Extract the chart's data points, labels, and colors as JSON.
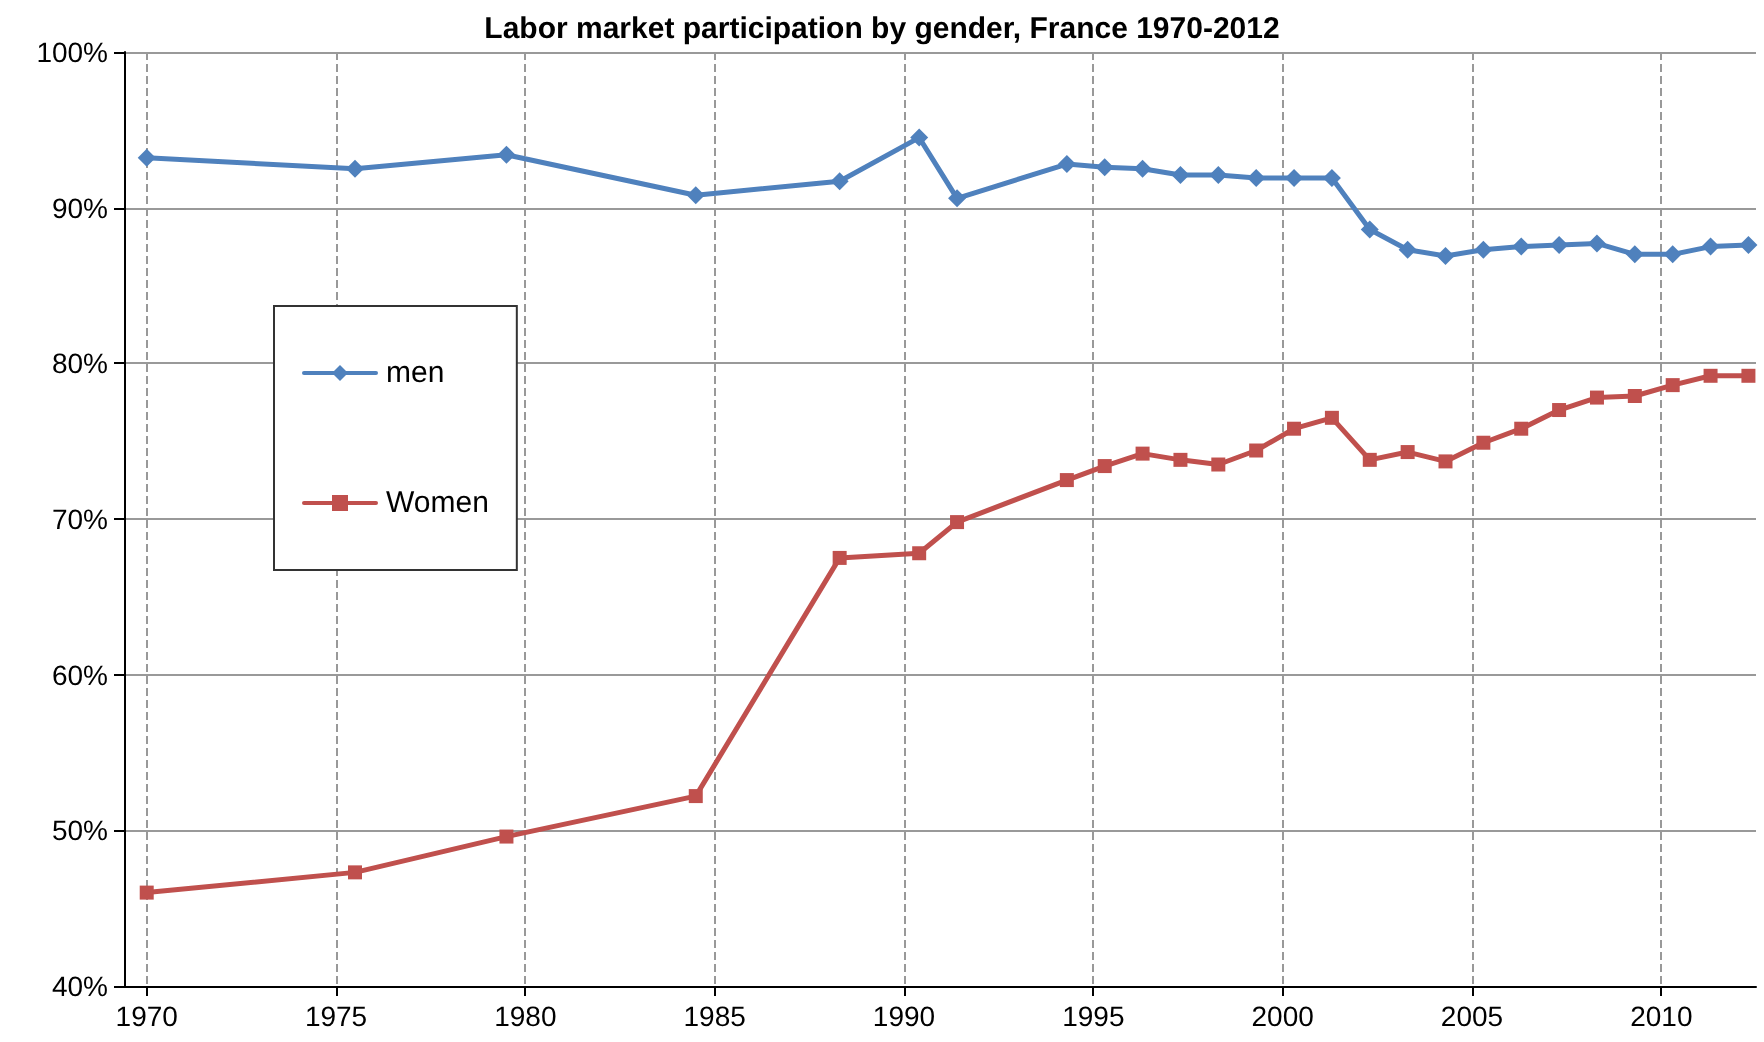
{
  "chart_data": {
    "type": "line",
    "title": "Labor market participation by gender, France 1970-2012",
    "x": [
      1970,
      1975.5,
      1979.5,
      1984.5,
      1988.3,
      1990.4,
      1991.4,
      1994.3,
      1995.3,
      1996.3,
      1997.3,
      1998.3,
      1999.3,
      2000.3,
      2001.3,
      2002.3,
      2003.3,
      2004.3,
      2005.3,
      2006.3,
      2007.3,
      2008.3,
      2009.3,
      2010.3,
      2011.3,
      2012.3
    ],
    "series": [
      {
        "name": "men",
        "color": "#4f81bd",
        "marker": "diamond",
        "values": [
          93.2,
          92.5,
          93.4,
          90.8,
          91.7,
          94.5,
          90.6,
          92.8,
          92.6,
          92.5,
          92.1,
          92.1,
          91.9,
          91.9,
          91.9,
          88.6,
          87.3,
          86.9,
          87.3,
          87.5,
          87.6,
          87.7,
          87.0,
          87.0,
          87.5,
          87.6
        ]
      },
      {
        "name": "Women",
        "color": "#c0504d",
        "marker": "square",
        "values": [
          46.0,
          47.3,
          49.6,
          52.2,
          67.5,
          67.8,
          69.8,
          72.5,
          73.4,
          74.2,
          73.8,
          73.5,
          74.4,
          75.8,
          76.5,
          73.8,
          74.3,
          73.7,
          74.9,
          75.8,
          77.0,
          77.8,
          77.9,
          78.6,
          79.2,
          79.2
        ]
      }
    ],
    "xlim": [
      1969.4,
      2012.5
    ],
    "xticks": [
      1970,
      1975,
      1980,
      1985,
      1990,
      1995,
      2000,
      2005,
      2010
    ],
    "ylim": [
      40,
      100
    ],
    "yticks": [
      {
        "value": 40,
        "label": "40%"
      },
      {
        "value": 50,
        "label": "50%"
      },
      {
        "value": 60,
        "label": "60%"
      },
      {
        "value": 70,
        "label": "70%"
      },
      {
        "value": 80,
        "label": "80%"
      },
      {
        "value": 90,
        "label": "90%"
      },
      {
        "value": 100,
        "label": "100%"
      }
    ],
    "grid": true,
    "legend": "top left",
    "line_style": "solid"
  }
}
